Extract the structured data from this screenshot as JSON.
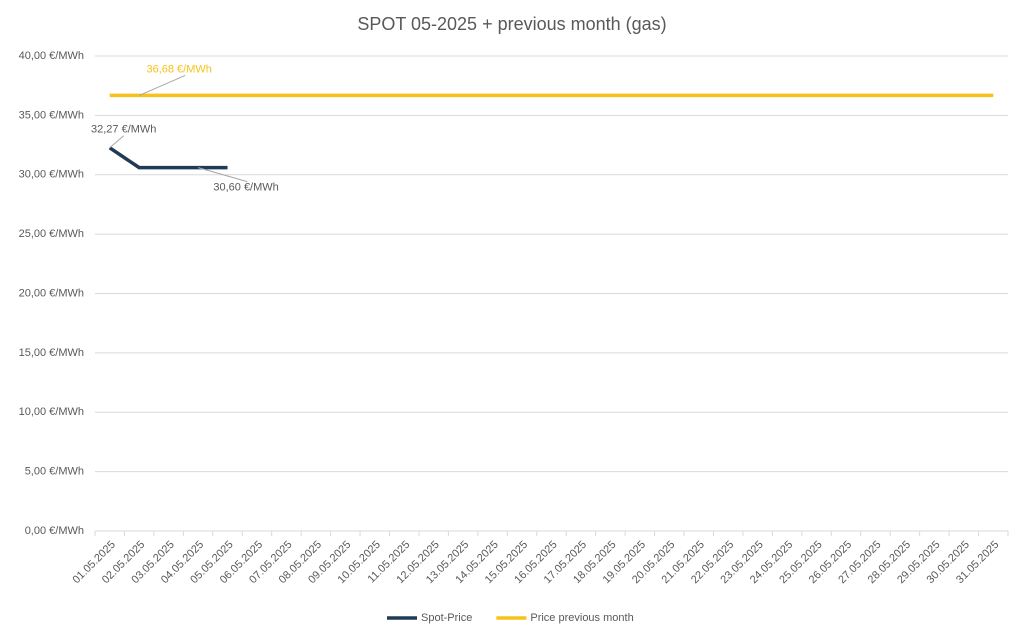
{
  "chart_data": {
    "type": "line",
    "title": "SPOT 05-2025 + previous month (gas)",
    "categories": [
      "01.05.2025",
      "02.05.2025",
      "03.05.2025",
      "04.05.2025",
      "05.05.2025",
      "06.05.2025",
      "07.05.2025",
      "08.05.2025",
      "09.05.2025",
      "10.05.2025",
      "11.05.2025",
      "12.05.2025",
      "13.05.2025",
      "14.05.2025",
      "15.05.2025",
      "16.05.2025",
      "17.05.2025",
      "18.05.2025",
      "19.05.2025",
      "20.05.2025",
      "21.05.2025",
      "22.05.2025",
      "23.05.2025",
      "24.05.2025",
      "25.05.2025",
      "26.05.2025",
      "27.05.2025",
      "28.05.2025",
      "29.05.2025",
      "30.05.2025",
      "31.05.2025"
    ],
    "series": [
      {
        "name": "Spot-Price",
        "color": "#1f3b57",
        "values": [
          32.27,
          30.6,
          30.6,
          30.6,
          30.6,
          null,
          null,
          null,
          null,
          null,
          null,
          null,
          null,
          null,
          null,
          null,
          null,
          null,
          null,
          null,
          null,
          null,
          null,
          null,
          null,
          null,
          null,
          null,
          null,
          null,
          null
        ],
        "value_labels": [
          "32,27 €/MWh",
          null,
          null,
          "30,60 €/MWh",
          null,
          null,
          null,
          null,
          null,
          null,
          null,
          null,
          null,
          null,
          null,
          null,
          null,
          null,
          null,
          null,
          null,
          null,
          null,
          null,
          null,
          null,
          null,
          null,
          null,
          null,
          null
        ]
      },
      {
        "name": "Price previous month",
        "color": "#f7c21b",
        "values": [
          36.68,
          36.68,
          36.68,
          36.68,
          36.68,
          36.68,
          36.68,
          36.68,
          36.68,
          36.68,
          36.68,
          36.68,
          36.68,
          36.68,
          36.68,
          36.68,
          36.68,
          36.68,
          36.68,
          36.68,
          36.68,
          36.68,
          36.68,
          36.68,
          36.68,
          36.68,
          36.68,
          36.68,
          36.68,
          36.68,
          36.68
        ],
        "value_labels": [
          null,
          "36,68 €/MWh",
          null,
          null,
          null,
          null,
          null,
          null,
          null,
          null,
          null,
          null,
          null,
          null,
          null,
          null,
          null,
          null,
          null,
          null,
          null,
          null,
          null,
          null,
          null,
          null,
          null,
          null,
          null,
          null,
          null
        ]
      }
    ],
    "ylim": [
      0,
      40
    ],
    "yticks": [
      {
        "value": 0,
        "label": "0,00 €/MWh"
      },
      {
        "value": 5,
        "label": "5,00 €/MWh"
      },
      {
        "value": 10,
        "label": "10,00 €/MWh"
      },
      {
        "value": 15,
        "label": "15,00 €/MWh"
      },
      {
        "value": 20,
        "label": "20,00 €/MWh"
      },
      {
        "value": 25,
        "label": "25,00 €/MWh"
      },
      {
        "value": 30,
        "label": "30,00 €/MWh"
      },
      {
        "value": 35,
        "label": "35,00 €/MWh"
      },
      {
        "value": 40,
        "label": "40,00 €/MWh"
      }
    ],
    "grid": true,
    "legend": "bottom"
  }
}
